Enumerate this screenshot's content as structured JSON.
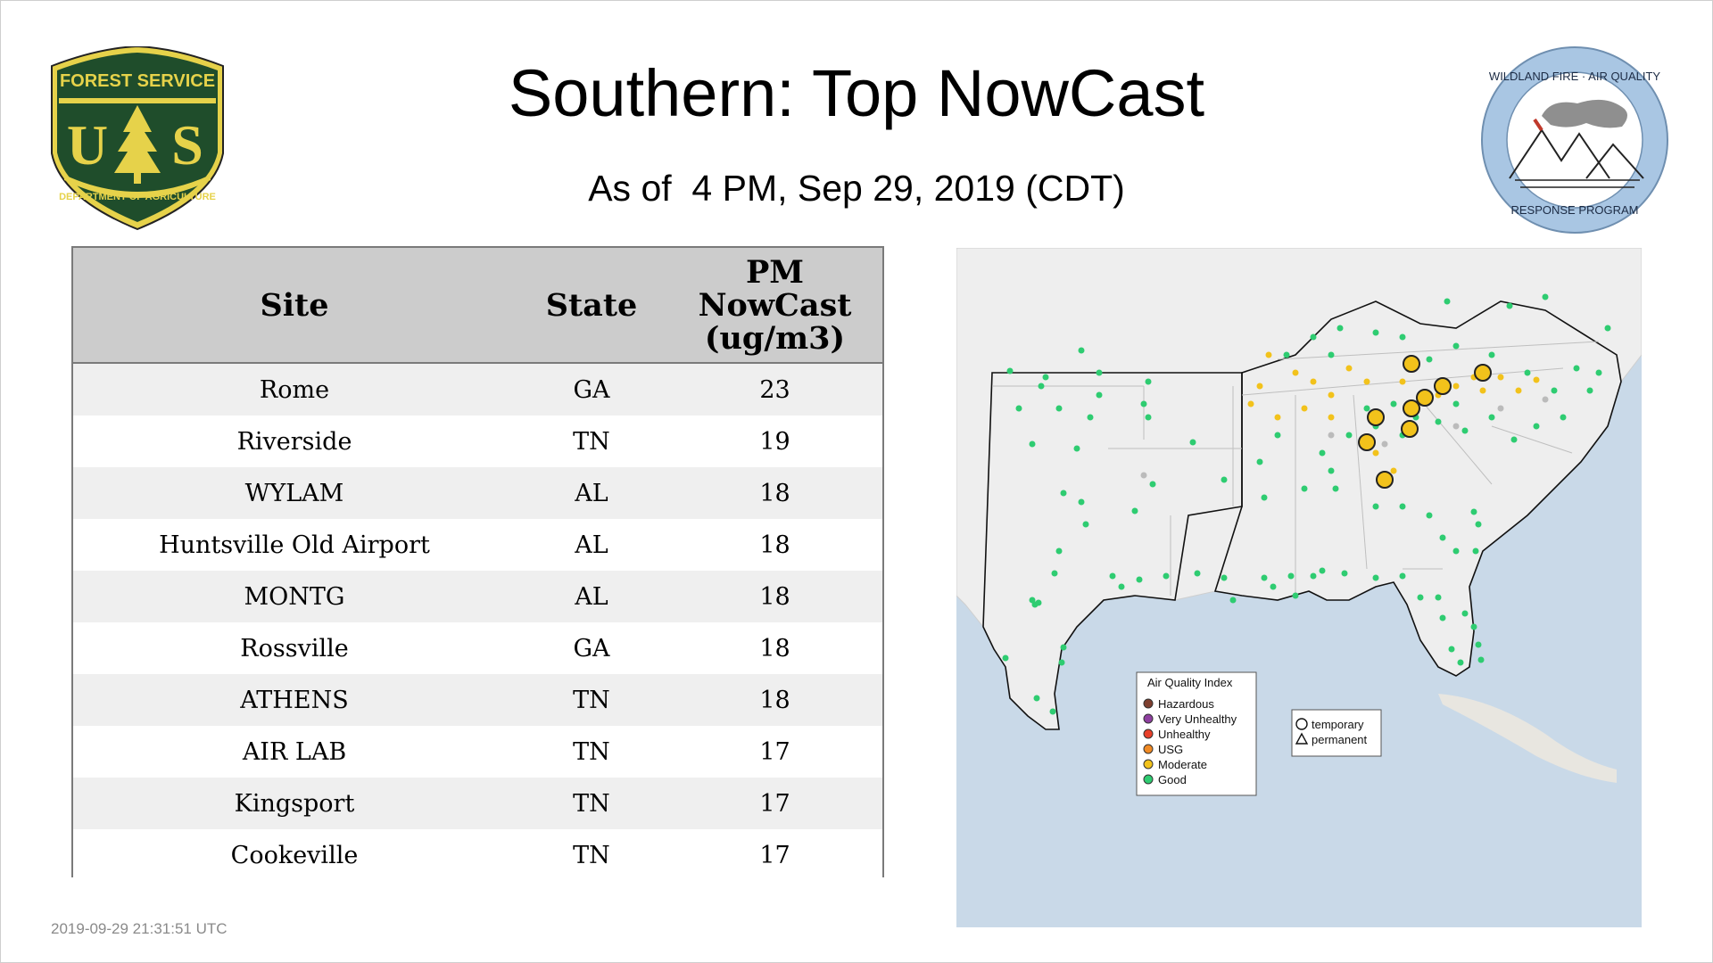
{
  "page": {
    "title": "Southern: Top NowCast",
    "subtitle": "As of  4 PM, Sep 29, 2019 (CDT)",
    "timestamp": "2019-09-29 21:31:51 UTC"
  },
  "logos": {
    "usfs": {
      "top_text": "FOREST SERVICE",
      "letters_left": "U",
      "letters_right": "S",
      "bottom_text": "DEPARTMENT OF AGRICULTURE",
      "icon": "pine-tree-icon"
    },
    "wfar": {
      "ring_text_top": "WILDLAND FIRE · AIR QUALITY",
      "ring_text_bottom": "RESPONSE PROGRAM",
      "icon": "mountains-smoke-icon"
    }
  },
  "table": {
    "headers": {
      "site": "Site",
      "state": "State",
      "pm_line1": "PM",
      "pm_line2": "NowCast",
      "pm_line3": "(ug/m3)"
    },
    "rows": [
      {
        "site": "Rome",
        "state": "GA",
        "value": "23"
      },
      {
        "site": "Riverside",
        "state": "TN",
        "value": "19"
      },
      {
        "site": "WYLAM",
        "state": "AL",
        "value": "18"
      },
      {
        "site": "Huntsville Old Airport",
        "state": "AL",
        "value": "18"
      },
      {
        "site": "MONTG",
        "state": "AL",
        "value": "18"
      },
      {
        "site": "Rossville",
        "state": "GA",
        "value": "18"
      },
      {
        "site": "ATHENS",
        "state": "TN",
        "value": "18"
      },
      {
        "site": "AIR LAB",
        "state": "TN",
        "value": "17"
      },
      {
        "site": "Kingsport",
        "state": "TN",
        "value": "17"
      },
      {
        "site": "Cookeville",
        "state": "TN",
        "value": "17"
      }
    ]
  },
  "map": {
    "legend": {
      "title": "Air Quality Index",
      "items": [
        {
          "label": "Hazardous",
          "color": "#7e3f2f"
        },
        {
          "label": "Very Unhealthy",
          "color": "#8f3fa0"
        },
        {
          "label": "Unhealthy",
          "color": "#e8402a"
        },
        {
          "label": "USG",
          "color": "#f08a24"
        },
        {
          "label": "Moderate",
          "color": "#f2c21b"
        },
        {
          "label": "Good",
          "color": "#2ecc71"
        }
      ]
    },
    "shape_legend": {
      "temporary": "temporary",
      "permanent": "permanent"
    },
    "colors": {
      "water": "#c9d9e8",
      "land": "#eeeeee",
      "good": "#2ecc71",
      "moderate": "#f2c21b",
      "no_data": "#bbbbbb"
    }
  }
}
